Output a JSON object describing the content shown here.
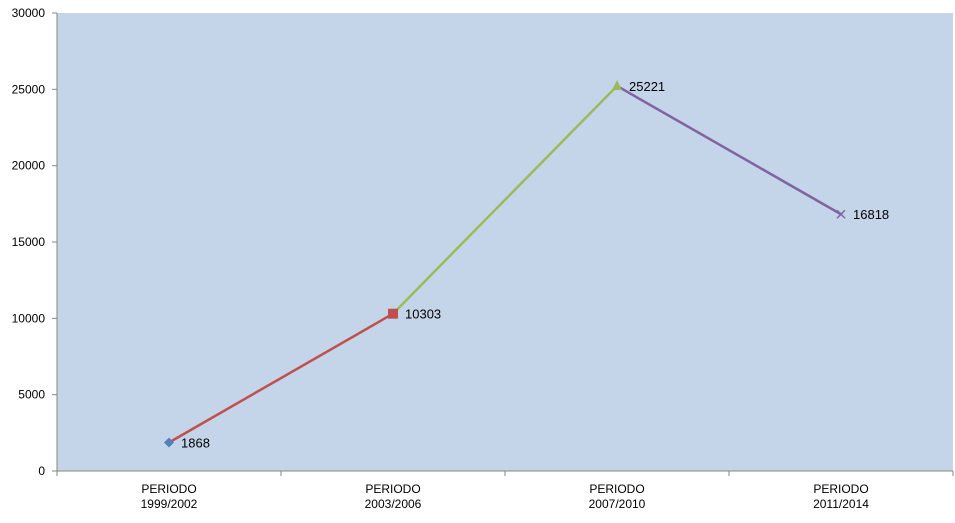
{
  "chart_data": {
    "type": "line",
    "categories": [
      [
        "PERIODO",
        "1999/2002"
      ],
      [
        "PERIODO",
        "2003/2006"
      ],
      [
        "PERIODO",
        "2007/2010"
      ],
      [
        "PERIODO",
        "2011/2014"
      ]
    ],
    "values": [
      1868,
      10303,
      25221,
      16818
    ],
    "data_labels": [
      "1868",
      "10303",
      "25221",
      "16818"
    ],
    "ylim": [
      0,
      30000
    ],
    "yticks": [
      0,
      5000,
      10000,
      15000,
      20000,
      25000,
      30000
    ],
    "ytick_labels": [
      "0",
      "5000",
      "10000",
      "15000",
      "20000",
      "25000",
      "30000"
    ],
    "grid": false,
    "legend": "none",
    "title": "",
    "xlabel": "",
    "ylabel": "",
    "colors": {
      "plot_background": "#c5d5e9",
      "axis": "#868686",
      "segments": [
        "#c0504d",
        "#9bbb59",
        "#8064a2"
      ],
      "markers": [
        "#4f81bd",
        "#c0504d",
        "#9bbb59",
        "#8064a2"
      ]
    },
    "marker_shapes": [
      "diamond",
      "square",
      "triangle",
      "x"
    ]
  }
}
